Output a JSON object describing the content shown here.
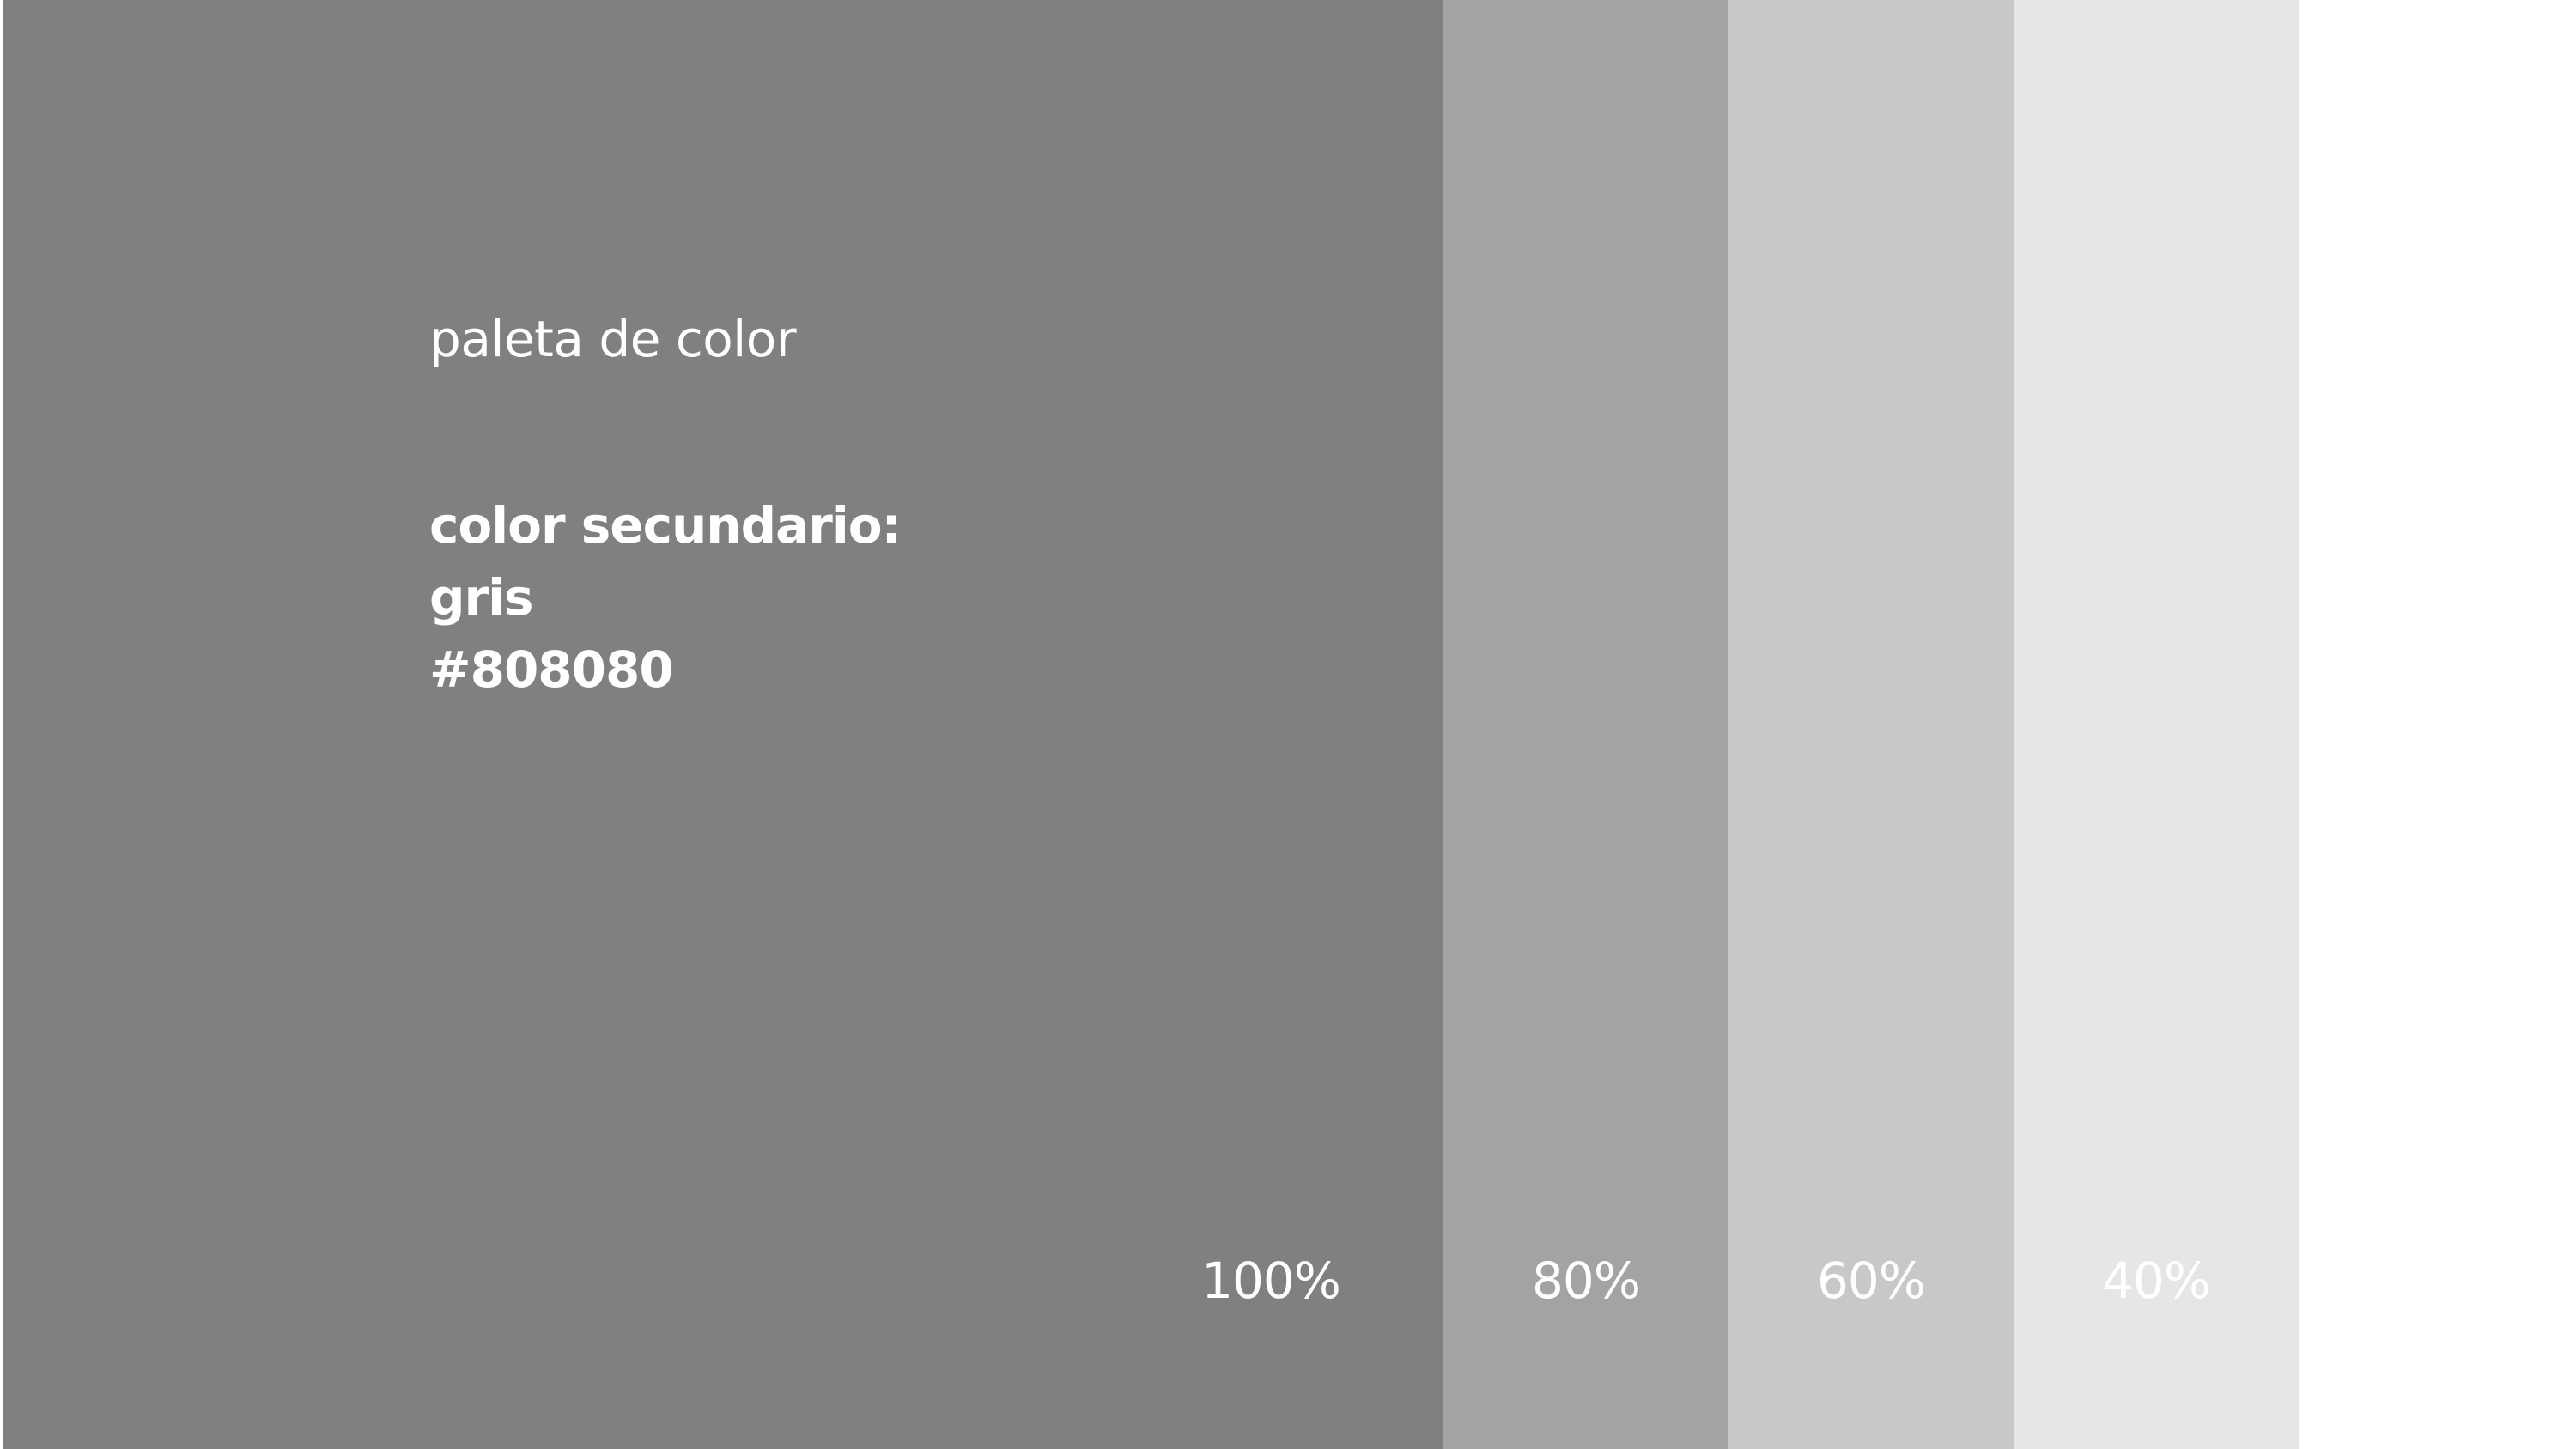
{
  "title": "paleta de color",
  "color_info": {
    "label": "color secundario:",
    "name": "gris",
    "hex": "#808080"
  },
  "swatches": [
    {
      "percent": "100%",
      "color": "#808080"
    },
    {
      "percent": "80%",
      "color": "#a3a3a3"
    },
    {
      "percent": "60%",
      "color": "#c7c8c8"
    },
    {
      "percent": "40%",
      "color": "#e6e6e6"
    }
  ],
  "background_color": "#ffffff"
}
